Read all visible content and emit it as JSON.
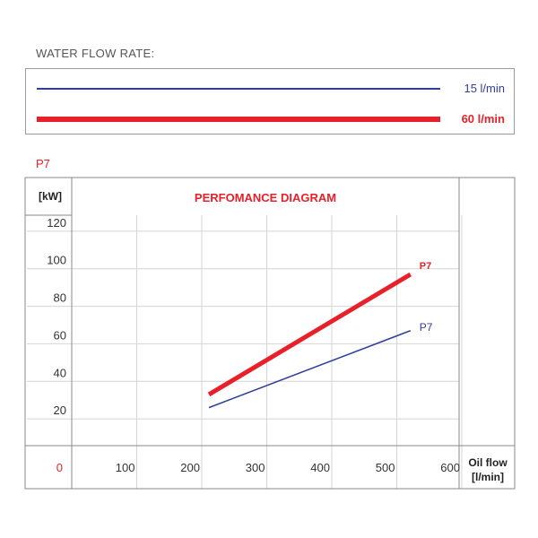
{
  "legend": {
    "title": "WATER FLOW RATE:",
    "items": [
      {
        "label": "15 l/min",
        "color": "#2e3f98"
      },
      {
        "label": "60 l/min",
        "color": "#e8202a"
      }
    ]
  },
  "model_label": {
    "text": "P7",
    "color": "#e8202a"
  },
  "chart_data": {
    "type": "line",
    "title": "PERFOMANCE DIAGRAM",
    "title_color": "#e8202a",
    "ylabel": "[kW]",
    "xlabel_line1": "Oil flow",
    "xlabel_line2": "[l/min]",
    "xlim": [
      0,
      600
    ],
    "ylim": [
      0,
      140
    ],
    "yticks": [
      20,
      40,
      60,
      80,
      100,
      120
    ],
    "xticks": [
      100,
      200,
      300,
      400,
      500,
      600
    ],
    "origin_label": "0",
    "origin_color": "#e8202a",
    "grid": true,
    "series": [
      {
        "name": "P7",
        "water_flow": "15 l/min",
        "color": "#2e3f98",
        "x": [
          200,
          510
        ],
        "y": [
          26,
          67
        ]
      },
      {
        "name": "P7",
        "water_flow": "60 l/min",
        "color": "#e8202a",
        "x": [
          200,
          510
        ],
        "y": [
          33,
          97
        ]
      }
    ]
  }
}
